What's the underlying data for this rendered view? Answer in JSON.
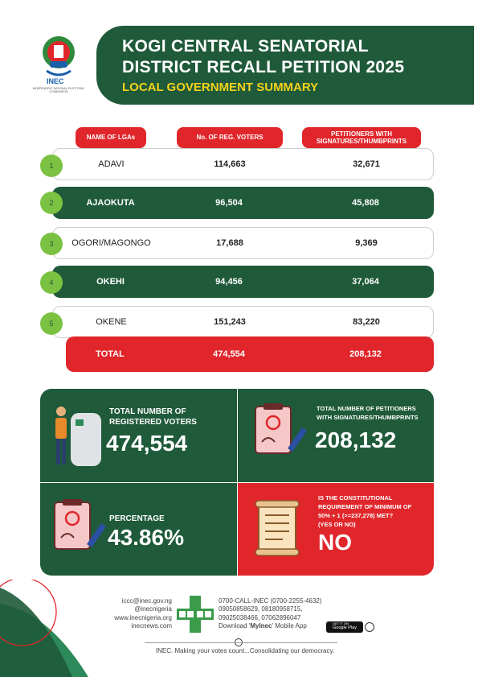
{
  "header": {
    "logo_text": "INEC",
    "logo_caption": "INDEPENDENT NATIONAL ELECTORAL COMMISSION",
    "title_line1": "KOGI CENTRAL SENATORIAL",
    "title_line2": "DISTRICT RECALL PETITION 2025",
    "subtitle": "LOCAL GOVERNMENT SUMMARY"
  },
  "table": {
    "headers": [
      "NAME OF LGAs",
      "No. OF REG. VOTERS",
      "PETITIONERS WITH SIGNATURES/THUMBPRINTS"
    ],
    "rows": [
      {
        "num": "1",
        "lga": "ADAVI",
        "voters": "114,663",
        "petitioners": "32,671"
      },
      {
        "num": "2",
        "lga": "AJAOKUTA",
        "voters": "96,504",
        "petitioners": "45,808"
      },
      {
        "num": "3",
        "lga": "OGORI/MAGONGO",
        "voters": "17,688",
        "petitioners": "9,369"
      },
      {
        "num": "4",
        "lga": "OKEHI",
        "voters": "94,456",
        "petitioners": "37,064"
      },
      {
        "num": "5",
        "lga": "OKENE",
        "voters": "151,243",
        "petitioners": "83,220"
      }
    ],
    "total": {
      "label": "TOTAL",
      "voters": "474,554",
      "petitioners": "208,132"
    }
  },
  "stats": {
    "registered": {
      "label_line1": "TOTAL NUMBER OF",
      "label_line2": "REGISTERED VOTERS",
      "value": "474,554"
    },
    "petitioners": {
      "label_line1": "TOTAL NUMBER OF PETITIONERS",
      "label_line2": "WITH SIGNATURES/THUMBPRINTS",
      "value": "208,132"
    },
    "percentage": {
      "label": "PERCENTAGE",
      "value": "43.86%"
    },
    "requirement": {
      "line1": "IS THE CONSTITUTIONAL",
      "line2": "REQUIREMENT OF MINIMUM OF",
      "line3": "50% + 1 (>=237,278) MET?",
      "line4": "(YES OR NO)",
      "value": "NO"
    }
  },
  "footer": {
    "contacts_left": [
      "iccc@inec.gov.ng",
      "@inecnigeria",
      "www.inecnigeria.org",
      "inecnews.com"
    ],
    "contacts_right": [
      "0700-CALL-INEC (0700-2255-4632)",
      "09050858629, 08180958715,",
      "09025038466, 07062896047"
    ],
    "app_prefix": "Download '",
    "app_name": "MyInec",
    "app_suffix": "' Mobile App",
    "store_top": "GET IT ON",
    "store_name": "Google Play",
    "slogan": "INEC. Making your votes count...Consolidating our democracy."
  },
  "colors": {
    "green": "#1f5a3a",
    "red": "#e0262b",
    "light_green": "#7cc242",
    "yellow": "#f3d21b"
  }
}
